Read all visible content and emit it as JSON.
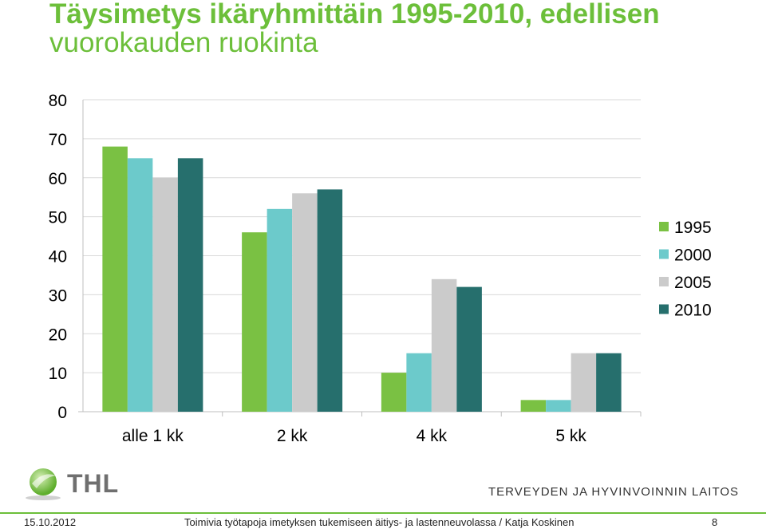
{
  "title_line1": "Täysimetys ikäryhmittäin 1995-2010, edellisen",
  "title_line2": "vuorokauden ruokinta",
  "chart_data": {
    "type": "bar",
    "categories": [
      "alle 1 kk",
      "2 kk",
      "4 kk",
      "5 kk"
    ],
    "series": [
      {
        "name": "1995",
        "color": "#7ac143",
        "values": [
          68,
          46,
          10,
          3
        ]
      },
      {
        "name": "2000",
        "color": "#6ccacb",
        "values": [
          65,
          52,
          15,
          3
        ]
      },
      {
        "name": "2005",
        "color": "#cbcbcb",
        "values": [
          60,
          56,
          34,
          15
        ]
      },
      {
        "name": "2010",
        "color": "#266f6d",
        "values": [
          65,
          57,
          32,
          15
        ]
      }
    ],
    "ylim": [
      0,
      80
    ],
    "yticks": [
      0,
      10,
      20,
      30,
      40,
      50,
      60,
      70,
      80
    ],
    "grid": "horizontal",
    "legend": "right"
  },
  "logo_text": "THL",
  "institute": "TERVEYDEN JA HYVINVOINNIN LAITOS",
  "footer": {
    "date": "15.10.2012",
    "description": "Toimivia työtapoja imetyksen tukemiseen äitiys- ja lastenneuvolassa / Katja Koskinen",
    "page": "8"
  }
}
